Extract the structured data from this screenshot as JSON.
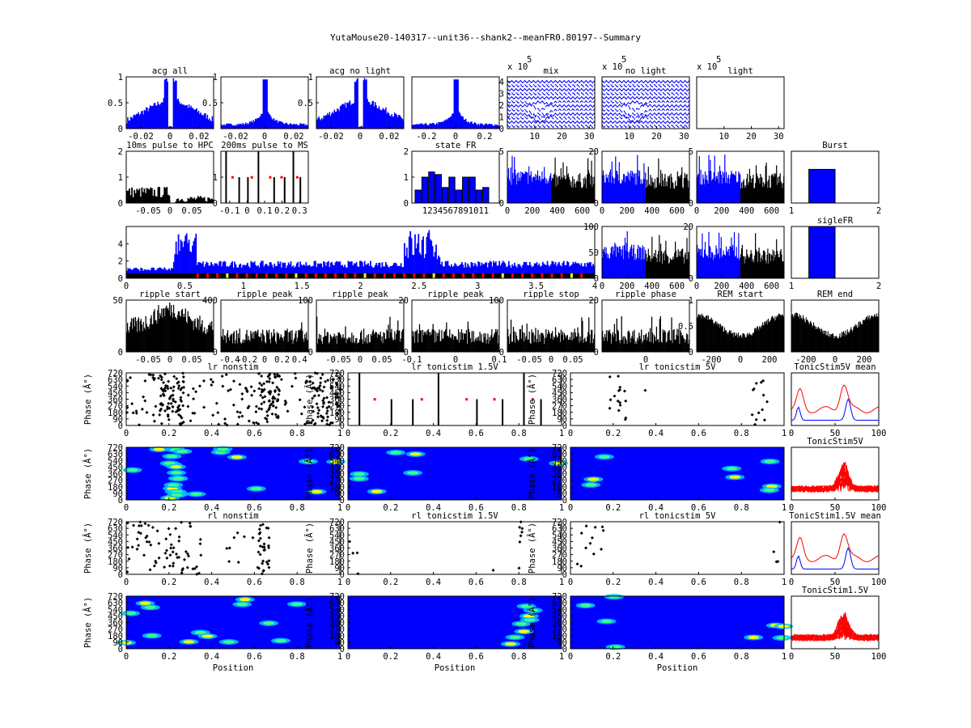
{
  "figure_title": "YutaMouse20-140317--unit36--shank2--meanFR0.80197--Summary",
  "colors": {
    "blue": "#0000ff",
    "black": "#000000",
    "red": "#ff0000",
    "yellow": "#ffff00"
  },
  "chart_data": [
    {
      "id": "acg-all",
      "type": "bar",
      "title": "acg all",
      "xlim": [
        -0.03,
        0.03
      ],
      "ylim": [
        0,
        1
      ],
      "xticks": [
        "-0.02",
        "0",
        "0.02"
      ],
      "yticks": [
        "0",
        "0.5",
        "1"
      ],
      "color": "blue",
      "shape": "acg-dip",
      "values_note": "autocorrelogram, peaks ~0.95 around ±0.003 s"
    },
    {
      "id": "acg-2",
      "type": "bar",
      "title": "",
      "xlim": [
        -0.03,
        0.03
      ],
      "ylim": [
        0,
        1
      ],
      "xticks": [
        "-0.02",
        "0",
        "0.02"
      ],
      "yticks": [
        "0.5",
        "1"
      ],
      "color": "blue",
      "shape": "acg-peak"
    },
    {
      "id": "acg-no-light",
      "type": "bar",
      "title": "acg no light",
      "xlim": [
        -0.03,
        0.03
      ],
      "ylim": [
        0,
        1
      ],
      "xticks": [
        "-0.02",
        "0",
        "0.02"
      ],
      "yticks": [
        "0.5",
        "1"
      ],
      "color": "blue",
      "shape": "acg-dip"
    },
    {
      "id": "acg-4",
      "type": "bar",
      "title": "",
      "xlim": [
        -0.3,
        0.3
      ],
      "ylim": [
        0,
        1
      ],
      "xticks": [
        "-0.2",
        "0",
        "0.2"
      ],
      "yticks": [],
      "color": "blue",
      "shape": "acg-peak"
    },
    {
      "id": "mix",
      "type": "line",
      "title": "mix",
      "exponent": "x 10",
      "exp_power": "5",
      "xlim": [
        0,
        32
      ],
      "ylim": [
        0,
        4.4
      ],
      "xticks": [
        "10",
        "20",
        "30"
      ],
      "yticks": [
        "0",
        "1",
        "2",
        "3",
        "4"
      ],
      "color": "blue",
      "shape": "waveforms"
    },
    {
      "id": "no-light",
      "type": "line",
      "title": "no light",
      "exponent": "x 10",
      "exp_power": "5",
      "xlim": [
        0,
        32
      ],
      "ylim": [
        0,
        4.4
      ],
      "xticks": [
        "10",
        "20",
        "30"
      ],
      "yticks": [],
      "color": "blue",
      "shape": "waveforms"
    },
    {
      "id": "light",
      "type": "line",
      "title": "light",
      "exponent": "x 10",
      "exp_power": "5",
      "xlim": [
        0,
        32
      ],
      "ylim": [
        0,
        4.4
      ],
      "xticks": [
        "10",
        "20",
        "30"
      ],
      "yticks": [],
      "color": "blue",
      "shape": "empty"
    },
    {
      "id": "pulse-hpc",
      "type": "bar",
      "title": "10ms pulse to HPC",
      "xlim": [
        -0.1,
        0.1
      ],
      "ylim": [
        0,
        2
      ],
      "xticks": [
        "-0.05",
        "0",
        "0.05"
      ],
      "yticks": [
        "0",
        "1",
        "2"
      ],
      "color": "black",
      "shape": "pulse"
    },
    {
      "id": "pulse-ms",
      "type": "bar",
      "title": "200ms pulse to MS",
      "xlim": [
        -0.15,
        0.35
      ],
      "ylim": [
        0,
        2
      ],
      "xticks": [
        "-0.1",
        "0",
        "0.1",
        "0.2",
        "0.3"
      ],
      "yticks": [
        "0",
        "1"
      ],
      "color": "black",
      "shape": "sparse"
    },
    {
      "id": "state-fr",
      "type": "bar",
      "title": "state FR",
      "categories": [
        "1",
        "2",
        "3",
        "4",
        "5",
        "6",
        "7",
        "8",
        "9",
        "10",
        "11"
      ],
      "values": [
        0.5,
        1.0,
        1.2,
        1.1,
        0.6,
        1.0,
        0.5,
        1.0,
        1.0,
        0.5,
        0.6
      ],
      "xticks": [
        "1234567891011"
      ],
      "ylim": [
        0,
        2
      ],
      "yticks": [
        "0",
        "1",
        "2"
      ],
      "color": "blue"
    },
    {
      "id": "fr-time-1",
      "type": "bar",
      "title": "",
      "xlim": [
        0,
        700
      ],
      "ylim": [
        0,
        5
      ],
      "xticks": [
        "0",
        "200",
        "400",
        "600"
      ],
      "yticks": [
        "0",
        "5"
      ],
      "split": 0.5,
      "shape": "split"
    },
    {
      "id": "fr-time-2",
      "type": "bar",
      "title": "",
      "xlim": [
        0,
        700
      ],
      "ylim": [
        0,
        20
      ],
      "xticks": [
        "0",
        "200",
        "400",
        "600"
      ],
      "yticks": [
        "0",
        "20"
      ],
      "split": 0.5,
      "shape": "split"
    },
    {
      "id": "fr-time-3",
      "type": "bar",
      "title": "",
      "xlim": [
        0,
        700
      ],
      "ylim": [
        0,
        5
      ],
      "xticks": [
        "0",
        "200",
        "400",
        "600"
      ],
      "yticks": [
        "0",
        "5"
      ],
      "split": 0.5,
      "shape": "split"
    },
    {
      "id": "burst",
      "type": "bar",
      "title": "Burst",
      "categories": [
        "1",
        "2"
      ],
      "values": [
        0.65,
        0
      ],
      "ylim": [
        0,
        1
      ],
      "xticks": [
        "1",
        "2"
      ],
      "yticks": [],
      "color": "blue"
    },
    {
      "id": "fr-long",
      "type": "bar",
      "title": "",
      "xlim": [
        0,
        4
      ],
      "ylim": [
        0,
        6
      ],
      "xticks": [
        "0",
        "0.5",
        "1",
        "1.5",
        "2",
        "2.5",
        "3",
        "3.5",
        "4"
      ],
      "yticks": [
        "0",
        "2",
        "4"
      ],
      "color": "blue",
      "shape": "long"
    },
    {
      "id": "fr-time-4",
      "type": "bar",
      "title": "",
      "xlim": [
        0,
        700
      ],
      "ylim": [
        0,
        100
      ],
      "xticks": [
        "0",
        "200",
        "400",
        "600"
      ],
      "yticks": [
        "0",
        "50",
        "100"
      ],
      "split": 0.5,
      "shape": "split"
    },
    {
      "id": "fr-time-5",
      "type": "bar",
      "title": "",
      "xlim": [
        0,
        700
      ],
      "ylim": [
        0,
        20
      ],
      "xticks": [
        "0",
        "200",
        "400",
        "600"
      ],
      "yticks": [
        "0",
        "20"
      ],
      "split": 0.5,
      "shape": "split"
    },
    {
      "id": "sigle-fr",
      "type": "bar",
      "title": "sigleFR",
      "categories": [
        "1",
        "2"
      ],
      "values": [
        1.0,
        0
      ],
      "ylim": [
        0,
        1
      ],
      "xticks": [
        "1",
        "2"
      ],
      "yticks": [],
      "color": "blue"
    },
    {
      "id": "ripple-start",
      "type": "bar",
      "title": "ripple start",
      "xlim": [
        -0.1,
        0.1
      ],
      "ylim": [
        0,
        50
      ],
      "xticks": [
        "-0.05",
        "0",
        "0.05"
      ],
      "yticks": [
        "0",
        "50"
      ],
      "color": "black",
      "shape": "noisy"
    },
    {
      "id": "ripple-peak-1",
      "type": "bar",
      "title": "ripple peak",
      "xlim": [
        -0.5,
        0.5
      ],
      "ylim": [
        0,
        400
      ],
      "xticks": [
        "-0.4",
        "-0.2",
        "0",
        "0.2",
        "0.4"
      ],
      "yticks": [
        "0",
        "400"
      ],
      "color": "black",
      "shape": "noisy-low"
    },
    {
      "id": "ripple-peak-2",
      "type": "bar",
      "title": "ripple peak",
      "xlim": [
        -0.1,
        0.1
      ],
      "ylim": [
        0,
        100
      ],
      "xticks": [
        "-0.05",
        "0",
        "0.05"
      ],
      "yticks": [
        "0",
        "100"
      ],
      "color": "black",
      "shape": "noisy-low"
    },
    {
      "id": "ripple-peak-3",
      "type": "bar",
      "title": "ripple peak",
      "xlim": [
        -0.1,
        0.1
      ],
      "ylim": [
        0,
        20
      ],
      "xticks": [
        "-0.1",
        "0",
        "0.1"
      ],
      "yticks": [
        "0",
        "20"
      ],
      "color": "black",
      "shape": "noisy-low"
    },
    {
      "id": "ripple-stop",
      "type": "bar",
      "title": "ripple stop",
      "xlim": [
        -0.1,
        0.1
      ],
      "ylim": [
        0,
        100
      ],
      "xticks": [
        "-0.05",
        "0",
        "0.05"
      ],
      "yticks": [
        "0",
        "100"
      ],
      "color": "black",
      "shape": "noisy-low"
    },
    {
      "id": "ripple-phase",
      "type": "bar",
      "title": "ripple phase",
      "xlim": [
        -0.1,
        0.1
      ],
      "ylim": [
        0,
        20
      ],
      "xticks": [
        "0"
      ],
      "yticks": [
        "0",
        "20"
      ],
      "color": "black",
      "shape": "noisy-low"
    },
    {
      "id": "rem-start",
      "type": "area",
      "title": "REM start",
      "xlim": [
        -300,
        300
      ],
      "ylim": [
        0,
        1
      ],
      "xticks": [
        "-200",
        "0",
        "200"
      ],
      "yticks": [
        "0",
        "0.5",
        "1"
      ],
      "color": "black",
      "shape": "rem"
    },
    {
      "id": "rem-end",
      "type": "area",
      "title": "REM end",
      "xlim": [
        -300,
        300
      ],
      "ylim": [
        0,
        1
      ],
      "xticks": [
        "-200",
        "0",
        "200"
      ],
      "yticks": [],
      "color": "black",
      "shape": "rem"
    },
    {
      "id": "lr-nonstim",
      "type": "scatter",
      "title": "lr nonstim",
      "ylabel": "Phase (Â°)",
      "xlabel": "",
      "xlim": [
        0,
        1
      ],
      "ylim": [
        0,
        720
      ],
      "xticks": [
        "0",
        "0.2",
        "0.4",
        "0.6",
        "0.8",
        "1"
      ],
      "yticks": [
        "0",
        "90",
        "180",
        "270",
        "360",
        "450",
        "540",
        "630",
        "720"
      ],
      "color": "black",
      "shape": "dense"
    },
    {
      "id": "lr-tonic-15",
      "type": "scatter",
      "title": "lr tonicstim 1.5V",
      "ylabel": "Phase (Â°)",
      "xlim": [
        0,
        1
      ],
      "ylim": [
        0,
        720
      ],
      "xticks": [
        "0",
        "0.2",
        "0.4",
        "0.6",
        "0.8",
        "1"
      ],
      "yticks": [
        "0",
        "90",
        "180",
        "270",
        "360",
        "450",
        "540",
        "630",
        "720"
      ],
      "color": "black",
      "shape": "sparse"
    },
    {
      "id": "lr-tonic-5",
      "type": "scatter",
      "title": "lr tonicstim 5V",
      "ylabel": "Phase (Â°)",
      "xlim": [
        0,
        1
      ],
      "ylim": [
        0,
        720
      ],
      "xticks": [
        "0",
        "0.2",
        "0.4",
        "0.6",
        "0.8",
        "1"
      ],
      "yticks": [
        "0",
        "90",
        "180",
        "270",
        "360",
        "450",
        "540",
        "630",
        "720"
      ],
      "color": "black",
      "shape": "sparse2"
    },
    {
      "id": "tonic5v-mean",
      "type": "line",
      "title": "TonicStim5V mean",
      "xlim": [
        0,
        100
      ],
      "ylim": [
        0,
        1
      ],
      "xticks": [
        "0",
        "50",
        "100"
      ],
      "yticks": [],
      "series": [
        {
          "name": "",
          "color": "red"
        },
        {
          "name": "",
          "color": "blue"
        }
      ]
    },
    {
      "id": "lr-heat-1",
      "type": "heatmap",
      "title": "",
      "ylabel": "Phase (Â°)",
      "xlim": [
        0,
        1
      ],
      "ylim": [
        0,
        720
      ],
      "xticks": [
        "0",
        "0.2",
        "0.4",
        "0.6",
        "0.8",
        "1"
      ],
      "yticks": [
        "0",
        "90",
        "180",
        "270",
        "360",
        "450",
        "540",
        "630",
        "720"
      ]
    },
    {
      "id": "lr-heat-2",
      "type": "heatmap",
      "title": "",
      "ylabel": "Phase (Â°)",
      "xlim": [
        0,
        1
      ],
      "ylim": [
        0,
        720
      ],
      "xticks": [
        "0",
        "0.2",
        "0.4",
        "0.6",
        "0.8",
        "1"
      ],
      "yticks": [
        "0",
        "90",
        "180",
        "270",
        "360",
        "450",
        "540",
        "630",
        "720"
      ]
    },
    {
      "id": "lr-heat-3",
      "type": "heatmap",
      "title": "",
      "ylabel": "Phase (Â°)",
      "xlim": [
        0,
        1
      ],
      "ylim": [
        0,
        720
      ],
      "xticks": [
        "0",
        "0.2",
        "0.4",
        "0.6",
        "0.8",
        "1"
      ],
      "yticks": [
        "0",
        "90",
        "180",
        "270",
        "360",
        "450",
        "540",
        "630",
        "720"
      ]
    },
    {
      "id": "tonic5v",
      "type": "line",
      "title": "TonicStim5V",
      "xlim": [
        0,
        100
      ],
      "ylim": [
        0,
        1
      ],
      "xticks": [
        "0",
        "50",
        "100"
      ],
      "yticks": [],
      "series": [
        {
          "name": "",
          "color": "red"
        }
      ]
    },
    {
      "id": "rl-nonstim",
      "type": "scatter",
      "title": "rl nonstim",
      "ylabel": "Phase (Â°)",
      "xlim": [
        0,
        1
      ],
      "ylim": [
        0,
        720
      ],
      "xticks": [
        "0",
        "0.2",
        "0.4",
        "0.6",
        "0.8",
        "1"
      ],
      "yticks": [
        "0",
        "90",
        "180",
        "270",
        "360",
        "450",
        "540",
        "630",
        "720"
      ],
      "color": "black",
      "shape": "medium"
    },
    {
      "id": "rl-tonic-15",
      "type": "scatter",
      "title": "rl tonicstim 1.5V",
      "ylabel": "Phase (Â°)",
      "xlim": [
        0,
        1
      ],
      "ylim": [
        0,
        720
      ],
      "xticks": [
        "0",
        "0.2",
        "0.4",
        "0.6",
        "0.8",
        "1"
      ],
      "yticks": [
        "0",
        "90",
        "180",
        "270",
        "360",
        "450",
        "540",
        "630",
        "720"
      ],
      "color": "black",
      "shape": "sparse3"
    },
    {
      "id": "rl-tonic-5",
      "type": "scatter",
      "title": "rl tonicstim 5V",
      "ylabel": "Phase (Â°)",
      "xlim": [
        0,
        1
      ],
      "ylim": [
        0,
        720
      ],
      "xticks": [
        "0",
        "0.2",
        "0.4",
        "0.6",
        "0.8",
        "1"
      ],
      "yticks": [
        "0",
        "90",
        "180",
        "270",
        "360",
        "450",
        "540",
        "630",
        "720"
      ],
      "color": "black",
      "shape": "sparse4"
    },
    {
      "id": "tonic15v-mean",
      "type": "line",
      "title": "TonicStim1.5V mean",
      "xlim": [
        0,
        100
      ],
      "ylim": [
        0,
        1
      ],
      "xticks": [
        "0",
        "50",
        "100"
      ],
      "yticks": [],
      "series": [
        {
          "name": "",
          "color": "red"
        },
        {
          "name": "",
          "color": "blue"
        }
      ]
    },
    {
      "id": "rl-heat-1",
      "type": "heatmap",
      "title": "",
      "ylabel": "Phase (Â°)",
      "xlabel": "Position",
      "xlim": [
        0,
        1
      ],
      "ylim": [
        0,
        720
      ],
      "xticks": [
        "0",
        "0.2",
        "0.4",
        "0.6",
        "0.8",
        "1"
      ],
      "yticks": [
        "0",
        "90",
        "180",
        "270",
        "360",
        "450",
        "540",
        "630",
        "720"
      ]
    },
    {
      "id": "rl-heat-2",
      "type": "heatmap",
      "title": "",
      "ylabel": "Phase (Â°)",
      "xlabel": "Position",
      "xlim": [
        0,
        1
      ],
      "ylim": [
        0,
        720
      ],
      "xticks": [
        "0",
        "0.2",
        "0.4",
        "0.6",
        "0.8",
        "1"
      ],
      "yticks": [
        "0",
        "90",
        "180",
        "270",
        "360",
        "450",
        "540",
        "630",
        "720"
      ]
    },
    {
      "id": "rl-heat-3",
      "type": "heatmap",
      "title": "",
      "ylabel": "Phase (Â°)",
      "xlabel": "Position",
      "xlim": [
        0,
        1
      ],
      "ylim": [
        0,
        720
      ],
      "xticks": [
        "0",
        "0.2",
        "0.4",
        "0.6",
        "0.8",
        "1"
      ],
      "yticks": [
        "0",
        "90",
        "180",
        "270",
        "360",
        "450",
        "540",
        "630",
        "720"
      ]
    },
    {
      "id": "tonic15v",
      "type": "line",
      "title": "TonicStim1.5V",
      "xlim": [
        0,
        100
      ],
      "ylim": [
        0,
        1
      ],
      "xticks": [
        "0",
        "50",
        "100"
      ],
      "yticks": [],
      "series": [
        {
          "name": "",
          "color": "red"
        }
      ]
    }
  ]
}
